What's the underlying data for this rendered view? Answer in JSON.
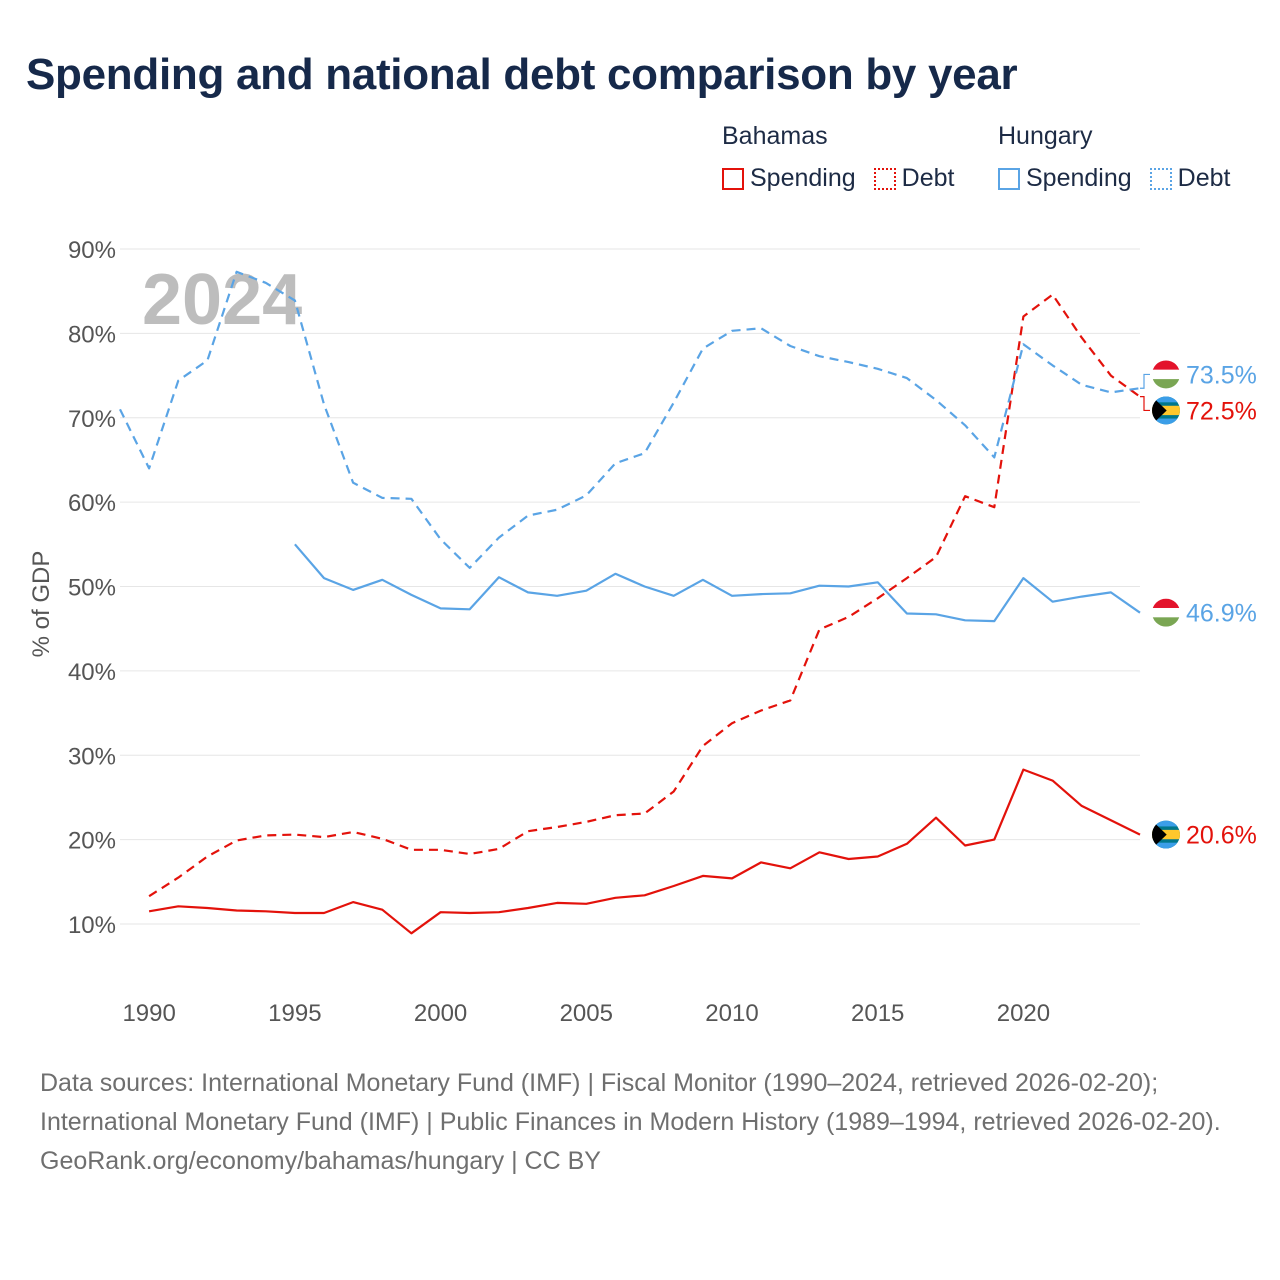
{
  "title": "Spending and national debt comparison by year",
  "year_label": "2024",
  "colors": {
    "bahamas": "#e3120b",
    "hungary": "#5aa4e5",
    "grid": "#e6e6e6",
    "axis_text": "#555555",
    "year": "#bdbdbd"
  },
  "legend": {
    "bahamas": {
      "name": "Bahamas",
      "spending": "Spending",
      "debt": "Debt"
    },
    "hungary": {
      "name": "Hungary",
      "spending": "Spending",
      "debt": "Debt"
    }
  },
  "chart_data": {
    "type": "line",
    "title": "Spending and national debt comparison by year",
    "xlabel": "",
    "ylabel": "% of GDP",
    "xlim": [
      1989,
      2024
    ],
    "ylim": [
      0,
      90
    ],
    "x_ticks": [
      1990,
      1995,
      2000,
      2005,
      2010,
      2015,
      2020
    ],
    "x_tick_labels": [
      "1990",
      "1995",
      "2000",
      "2005",
      "2010",
      "2015",
      "2020"
    ],
    "y_ticks": [
      10,
      20,
      30,
      40,
      50,
      60,
      70,
      80,
      90
    ],
    "y_tick_labels": [
      "10%",
      "20%",
      "30%",
      "40%",
      "50%",
      "60%",
      "70%",
      "80%",
      "90%"
    ],
    "grid": true,
    "series": [
      {
        "name": "Bahamas Spending",
        "country": "bahamas",
        "style": "solid",
        "end_label": "20.6%",
        "x": [
          1990,
          1991,
          1992,
          1993,
          1994,
          1995,
          1996,
          1997,
          1998,
          1999,
          2000,
          2001,
          2002,
          2003,
          2004,
          2005,
          2006,
          2007,
          2008,
          2009,
          2010,
          2011,
          2012,
          2013,
          2014,
          2015,
          2016,
          2017,
          2018,
          2019,
          2020,
          2021,
          2022,
          2023,
          2024
        ],
        "values": [
          11.5,
          12.1,
          11.9,
          11.6,
          11.5,
          11.3,
          11.3,
          12.6,
          11.7,
          8.9,
          11.4,
          11.3,
          11.4,
          11.9,
          12.5,
          12.4,
          13.1,
          13.4,
          14.5,
          15.7,
          15.4,
          17.3,
          16.6,
          18.5,
          17.7,
          18.0,
          19.5,
          22.6,
          19.3,
          20.0,
          28.3,
          27.0,
          24.0,
          22.3,
          20.6
        ]
      },
      {
        "name": "Bahamas Debt",
        "country": "bahamas",
        "style": "dashed",
        "end_label": "72.5%",
        "x": [
          1990,
          1991,
          1992,
          1993,
          1994,
          1995,
          1996,
          1997,
          1998,
          1999,
          2000,
          2001,
          2002,
          2003,
          2004,
          2005,
          2006,
          2007,
          2008,
          2009,
          2010,
          2011,
          2012,
          2013,
          2014,
          2015,
          2016,
          2017,
          2018,
          2019,
          2020,
          2021,
          2022,
          2023,
          2024
        ],
        "values": [
          13.3,
          15.5,
          18.0,
          19.9,
          20.5,
          20.6,
          20.3,
          20.9,
          20.1,
          18.8,
          18.8,
          18.3,
          18.9,
          21.0,
          21.5,
          22.1,
          22.9,
          23.1,
          25.7,
          31.1,
          33.8,
          35.3,
          36.5,
          44.9,
          46.4,
          48.6,
          51.0,
          53.5,
          60.7,
          59.4,
          82.0,
          84.6,
          79.5,
          75.0,
          72.5
        ]
      },
      {
        "name": "Hungary Spending",
        "country": "hungary",
        "style": "solid",
        "end_label": "46.9%",
        "x": [
          1995,
          1996,
          1997,
          1998,
          1999,
          2000,
          2001,
          2002,
          2003,
          2004,
          2005,
          2006,
          2007,
          2008,
          2009,
          2010,
          2011,
          2012,
          2013,
          2014,
          2015,
          2016,
          2017,
          2018,
          2019,
          2020,
          2021,
          2022,
          2023,
          2024
        ],
        "values": [
          55.0,
          51.0,
          49.6,
          50.8,
          49.0,
          47.4,
          47.3,
          51.1,
          49.3,
          48.9,
          49.5,
          51.5,
          50.0,
          48.9,
          50.8,
          48.9,
          49.1,
          49.2,
          50.1,
          50.0,
          50.5,
          46.8,
          46.7,
          46.0,
          45.9,
          51.0,
          48.2,
          48.8,
          49.3,
          46.9
        ]
      },
      {
        "name": "Hungary Debt",
        "country": "hungary",
        "style": "dashed",
        "end_label": "73.5%",
        "x": [
          1989,
          1990,
          1991,
          1992,
          1993,
          1994,
          1995,
          1996,
          1997,
          1998,
          1999,
          2000,
          2001,
          2002,
          2003,
          2004,
          2005,
          2006,
          2007,
          2008,
          2009,
          2010,
          2011,
          2012,
          2013,
          2014,
          2015,
          2016,
          2017,
          2018,
          2019,
          2020,
          2021,
          2022,
          2023,
          2024
        ],
        "values": [
          71.0,
          64.0,
          74.4,
          76.8,
          87.3,
          86.0,
          83.9,
          71.6,
          62.3,
          60.5,
          60.4,
          55.6,
          52.2,
          55.8,
          58.4,
          59.1,
          60.8,
          64.6,
          65.8,
          71.8,
          78.2,
          80.3,
          80.6,
          78.5,
          77.3,
          76.6,
          75.8,
          74.7,
          72.1,
          69.1,
          65.3,
          78.7,
          76.2,
          73.9,
          73.0,
          73.5
        ]
      }
    ]
  },
  "footer": {
    "sources": "Data sources: International Monetary Fund (IMF) | Fiscal Monitor (1990–2024, retrieved 2026-02-20); International Monetary Fund (IMF) | Public Finances in Modern History (1989–1994, retrieved 2026-02-20).",
    "credit": "GeoRank.org/economy/bahamas/hungary | CC BY"
  }
}
